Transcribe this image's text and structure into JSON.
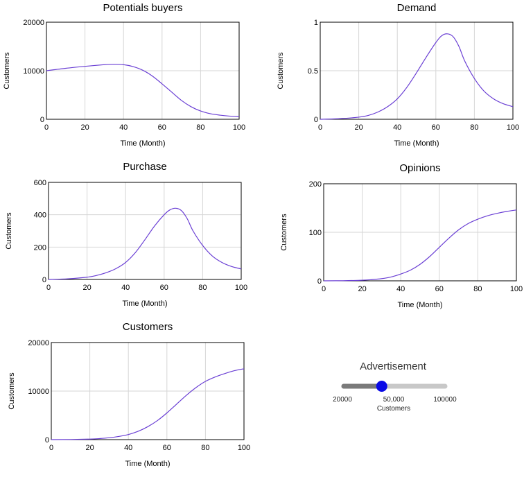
{
  "chart_data": [
    {
      "type": "line",
      "title": "Potentials buyers",
      "xlabel": "Time (Month)",
      "ylabel": "Customers",
      "xlim": [
        0,
        100
      ],
      "ylim": [
        0,
        20000
      ],
      "xticks": [
        "0",
        "20",
        "40",
        "60",
        "80",
        "100"
      ],
      "yticks": [
        "0",
        "10000",
        "20000"
      ],
      "grid": true,
      "color": "#6a3fd4",
      "x": [
        0,
        10,
        20,
        30,
        35,
        40,
        45,
        50,
        55,
        60,
        65,
        70,
        75,
        80,
        85,
        90,
        95,
        100
      ],
      "y": [
        10000,
        10500,
        10900,
        11250,
        11350,
        11250,
        10850,
        10100,
        8900,
        7300,
        5600,
        3900,
        2600,
        1700,
        1150,
        850,
        650,
        550
      ]
    },
    {
      "type": "line",
      "title": "Demand",
      "xlabel": "Time (Month)",
      "ylabel": "Customers",
      "xlim": [
        0,
        100
      ],
      "ylim": [
        0,
        1
      ],
      "xticks": [
        "0",
        "20",
        "40",
        "60",
        "80",
        "100"
      ],
      "yticks": [
        "0",
        "0.5",
        "1"
      ],
      "grid": true,
      "color": "#6a3fd4",
      "x": [
        0,
        10,
        20,
        25,
        30,
        35,
        40,
        45,
        50,
        55,
        60,
        63,
        66,
        69,
        72,
        75,
        80,
        85,
        90,
        95,
        100
      ],
      "y": [
        0,
        0.006,
        0.022,
        0.04,
        0.075,
        0.13,
        0.21,
        0.33,
        0.48,
        0.64,
        0.79,
        0.86,
        0.88,
        0.85,
        0.75,
        0.6,
        0.42,
        0.29,
        0.21,
        0.16,
        0.13
      ]
    },
    {
      "type": "line",
      "title": "Purchase",
      "xlabel": "Time (Month)",
      "ylabel": "Customers",
      "xlim": [
        0,
        100
      ],
      "ylim": [
        0,
        600
      ],
      "xticks": [
        "0",
        "20",
        "40",
        "60",
        "80",
        "100"
      ],
      "yticks": [
        "0",
        "200",
        "400",
        "600"
      ],
      "grid": true,
      "color": "#6a3fd4",
      "x": [
        0,
        10,
        20,
        25,
        30,
        35,
        40,
        45,
        50,
        55,
        60,
        63,
        66,
        69,
        72,
        75,
        80,
        85,
        90,
        95,
        100
      ],
      "y": [
        0,
        4,
        14,
        25,
        42,
        67,
        105,
        165,
        245,
        330,
        400,
        430,
        440,
        425,
        375,
        300,
        210,
        145,
        105,
        80,
        65
      ]
    },
    {
      "type": "line",
      "title": "Opinions",
      "xlabel": "Time (Month)",
      "ylabel": "Customers",
      "xlim": [
        0,
        100
      ],
      "ylim": [
        0,
        200
      ],
      "xticks": [
        "0",
        "20",
        "40",
        "60",
        "80",
        "100"
      ],
      "yticks": [
        "0",
        "100",
        "200"
      ],
      "grid": true,
      "color": "#6a3fd4",
      "x": [
        0,
        10,
        20,
        25,
        30,
        35,
        40,
        45,
        50,
        55,
        60,
        65,
        70,
        75,
        80,
        85,
        90,
        95,
        100
      ],
      "y": [
        0,
        0.3,
        1.2,
        2.5,
        4.5,
        8,
        14,
        22,
        34,
        50,
        69,
        88,
        105,
        118,
        127,
        134,
        139,
        143,
        146
      ]
    },
    {
      "type": "line",
      "title": "Customers",
      "xlabel": "Time (Month)",
      "ylabel": "Customers",
      "xlim": [
        0,
        100
      ],
      "ylim": [
        0,
        20000
      ],
      "xticks": [
        "0",
        "20",
        "40",
        "60",
        "80",
        "100"
      ],
      "yticks": [
        "0",
        "10000",
        "20000"
      ],
      "grid": true,
      "color": "#6a3fd4",
      "x": [
        0,
        10,
        20,
        25,
        30,
        35,
        40,
        45,
        50,
        55,
        60,
        65,
        70,
        75,
        80,
        85,
        90,
        95,
        100
      ],
      "y": [
        0,
        30,
        110,
        210,
        380,
        650,
        1050,
        1700,
        2650,
        3900,
        5500,
        7300,
        9100,
        10700,
        12000,
        12900,
        13600,
        14200,
        14600
      ]
    }
  ],
  "slider": {
    "title": "Advertisement",
    "min_label": "20000",
    "max_label": "100000",
    "value_label": "50,000",
    "unit_label": "Customers",
    "min": 20000,
    "max": 100000,
    "value": 50000,
    "track_color": "#c8c8c8",
    "fill_color": "#7a7a7a",
    "knob_color": "#0a0ae6"
  }
}
